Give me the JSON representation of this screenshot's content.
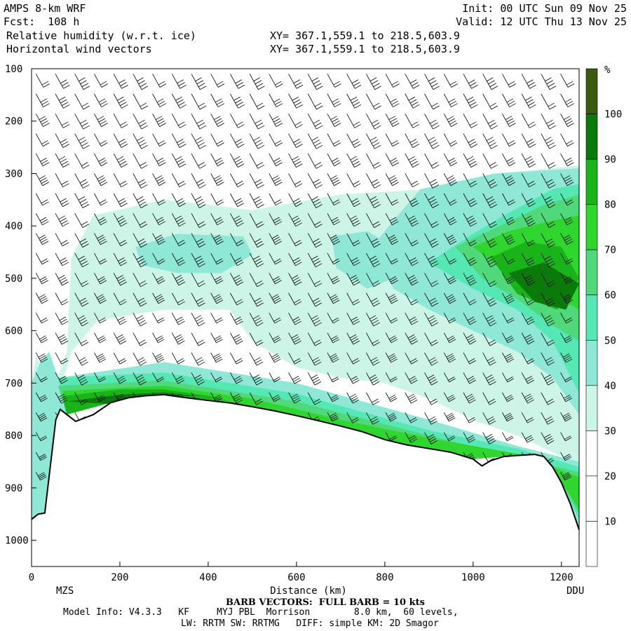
{
  "header": {
    "model": "AMPS 8-km WRF",
    "fcst": "Fcst:  108 h",
    "field1": "Relative humidity (w.r.t. ice)",
    "field2": "Horizontal wind vectors",
    "init": "Init: 00 UTC Sun 09 Nov 25",
    "valid": "Valid: 12 UTC Thu 13 Nov 25",
    "xy1": "XY= 367.1,559.1 to 218.5,603.9",
    "xy2": "XY= 367.1,559.1 to 218.5,603.9"
  },
  "footer": {
    "barb": "BARB VECTORS:  FULL BARB = 10 kts",
    "info1": "Model Info: V4.3.3   KF     MYJ PBL  Morrison        8.0 km,  60 levels,",
    "info2": "LW: RRTM SW: RRTMG   DIFF: simple KM: 2D Smagor"
  },
  "colors": {
    "c30": "#ccf5e8",
    "c40": "#8fe8d6",
    "c50": "#55e8b4",
    "c60": "#4fd97a",
    "c70": "#2ed62e",
    "c80": "#19b419",
    "c90": "#0a7a0a",
    "c100": "#3b5c0c",
    "terrain": "#000000"
  },
  "chart_data": {
    "type": "heatmap",
    "title": "Relative humidity (w.r.t. ice)",
    "xlabel": "Distance (km)",
    "ylabel": "",
    "xlim": [
      0,
      1240
    ],
    "ylim": [
      1050,
      100
    ],
    "xticks": [
      "0",
      "200",
      "400",
      "600",
      "800",
      "1000",
      "1200"
    ],
    "xtick_values": [
      0,
      200,
      400,
      600,
      800,
      1000,
      1200
    ],
    "yticks": [
      "100",
      "200",
      "300",
      "400",
      "500",
      "600",
      "700",
      "800",
      "900",
      "1000"
    ],
    "ytick_values": [
      100,
      200,
      300,
      400,
      500,
      600,
      700,
      800,
      900,
      1000
    ],
    "left_label": "MZS",
    "right_label": "DDU",
    "colorbar": {
      "unit": "%",
      "labels": [
        "10",
        "20",
        "30",
        "40",
        "50",
        "60",
        "70",
        "80",
        "90",
        "100"
      ],
      "values": [
        10,
        20,
        30,
        40,
        50,
        60,
        70,
        80,
        90,
        100
      ]
    },
    "terrain_surface_hpa": [
      [
        0,
        960
      ],
      [
        15,
        950
      ],
      [
        30,
        948
      ],
      [
        55,
        770
      ],
      [
        65,
        750
      ],
      [
        80,
        760
      ],
      [
        100,
        773
      ],
      [
        140,
        760
      ],
      [
        180,
        737
      ],
      [
        220,
        728
      ],
      [
        260,
        724
      ],
      [
        300,
        722
      ],
      [
        350,
        728
      ],
      [
        400,
        733
      ],
      [
        450,
        738
      ],
      [
        500,
        745
      ],
      [
        550,
        753
      ],
      [
        600,
        762
      ],
      [
        650,
        772
      ],
      [
        700,
        782
      ],
      [
        750,
        793
      ],
      [
        800,
        808
      ],
      [
        850,
        818
      ],
      [
        900,
        825
      ],
      [
        950,
        832
      ],
      [
        1000,
        845
      ],
      [
        1020,
        858
      ],
      [
        1040,
        848
      ],
      [
        1070,
        840
      ],
      [
        1100,
        838
      ],
      [
        1140,
        836
      ],
      [
        1160,
        840
      ],
      [
        1180,
        860
      ],
      [
        1200,
        890
      ],
      [
        1220,
        930
      ],
      [
        1240,
        980
      ]
    ],
    "humidity_regions": [
      {
        "level": 30,
        "points": [
          [
            0,
            700
          ],
          [
            60,
            690
          ],
          [
            80,
            640
          ],
          [
            90,
            460
          ],
          [
            140,
            380
          ],
          [
            300,
            350
          ],
          [
            500,
            370
          ],
          [
            700,
            340
          ],
          [
            900,
            330
          ],
          [
            1050,
            300
          ],
          [
            1240,
            285
          ],
          [
            1240,
            860
          ],
          [
            1200,
            840
          ],
          [
            1100,
            800
          ],
          [
            1000,
            770
          ],
          [
            900,
            730
          ],
          [
            800,
            700
          ],
          [
            700,
            690
          ],
          [
            600,
            670
          ],
          [
            500,
            620
          ],
          [
            450,
            560
          ],
          [
            300,
            560
          ],
          [
            150,
            580
          ],
          [
            90,
            640
          ],
          [
            70,
            700
          ],
          [
            40,
            690
          ],
          [
            10,
            650
          ],
          [
            0,
            700
          ]
        ]
      },
      {
        "level": 40,
        "points": [
          [
            235,
            440
          ],
          [
            330,
            415
          ],
          [
            480,
            420
          ],
          [
            500,
            455
          ],
          [
            430,
            490
          ],
          [
            330,
            490
          ],
          [
            250,
            475
          ]
        ]
      },
      {
        "level": 40,
        "points": [
          [
            680,
            420
          ],
          [
            760,
            410
          ],
          [
            800,
            430
          ],
          [
            820,
            500
          ],
          [
            760,
            520
          ],
          [
            690,
            480
          ]
        ]
      },
      {
        "level": 40,
        "points": [
          [
            770,
            440
          ],
          [
            880,
            330
          ],
          [
            1050,
            300
          ],
          [
            1240,
            290
          ],
          [
            1240,
            760
          ],
          [
            1180,
            690
          ],
          [
            1100,
            640
          ],
          [
            1000,
            600
          ],
          [
            900,
            560
          ],
          [
            820,
            520
          ]
        ]
      },
      {
        "level": 40,
        "points": [
          [
            0,
            700
          ],
          [
            20,
            660
          ],
          [
            40,
            640
          ],
          [
            60,
            690
          ],
          [
            80,
            760
          ],
          [
            60,
            900
          ],
          [
            20,
            960
          ],
          [
            0,
            960
          ]
        ]
      },
      {
        "level": 40,
        "points": [
          [
            60,
            690
          ],
          [
            300,
            660
          ],
          [
            600,
            700
          ],
          [
            900,
            770
          ],
          [
            1100,
            820
          ],
          [
            1240,
            850
          ],
          [
            1240,
            980
          ],
          [
            1200,
            890
          ],
          [
            1100,
            838
          ],
          [
            1000,
            845
          ],
          [
            800,
            808
          ],
          [
            500,
            745
          ],
          [
            300,
            722
          ],
          [
            180,
            737
          ],
          [
            80,
            760
          ]
        ]
      },
      {
        "level": 50,
        "points": [
          [
            900,
            470
          ],
          [
            990,
            420
          ],
          [
            1070,
            380
          ],
          [
            1180,
            330
          ],
          [
            1240,
            320
          ],
          [
            1240,
            720
          ],
          [
            1180,
            620
          ],
          [
            1100,
            560
          ],
          [
            1000,
            520
          ]
        ]
      },
      {
        "level": 50,
        "points": [
          [
            60,
            690
          ],
          [
            300,
            680
          ],
          [
            600,
            720
          ],
          [
            900,
            790
          ],
          [
            1100,
            825
          ],
          [
            1240,
            860
          ],
          [
            1240,
            960
          ],
          [
            1200,
            890
          ],
          [
            1100,
            838
          ],
          [
            1000,
            845
          ],
          [
            800,
            808
          ],
          [
            500,
            745
          ],
          [
            300,
            722
          ],
          [
            180,
            737
          ],
          [
            80,
            760
          ]
        ]
      },
      {
        "level": 60,
        "points": [
          [
            960,
            440
          ],
          [
            1060,
            400
          ],
          [
            1160,
            360
          ],
          [
            1240,
            340
          ],
          [
            1240,
            620
          ],
          [
            1180,
            590
          ],
          [
            1100,
            540
          ],
          [
            1020,
            500
          ]
        ]
      },
      {
        "level": 60,
        "points": [
          [
            60,
            705
          ],
          [
            300,
            695
          ],
          [
            600,
            735
          ],
          [
            900,
            800
          ],
          [
            1240,
            870
          ],
          [
            1240,
            950
          ],
          [
            1200,
            890
          ],
          [
            1100,
            838
          ],
          [
            1000,
            845
          ],
          [
            800,
            808
          ],
          [
            500,
            745
          ],
          [
            300,
            722
          ],
          [
            180,
            737
          ],
          [
            80,
            760
          ]
        ]
      },
      {
        "level": 70,
        "points": [
          [
            1000,
            440
          ],
          [
            1080,
            410
          ],
          [
            1180,
            390
          ],
          [
            1240,
            380
          ],
          [
            1240,
            560
          ],
          [
            1160,
            520
          ],
          [
            1060,
            480
          ]
        ]
      },
      {
        "level": 70,
        "points": [
          [
            70,
            715
          ],
          [
            300,
            705
          ],
          [
            500,
            730
          ],
          [
            700,
            770
          ],
          [
            900,
            805
          ],
          [
            1100,
            835
          ],
          [
            1240,
            880
          ],
          [
            1240,
            940
          ],
          [
            1200,
            890
          ],
          [
            1100,
            838
          ],
          [
            1000,
            845
          ],
          [
            800,
            808
          ],
          [
            500,
            745
          ],
          [
            300,
            722
          ],
          [
            180,
            737
          ],
          [
            80,
            760
          ]
        ]
      },
      {
        "level": 80,
        "points": [
          [
            1040,
            460
          ],
          [
            1120,
            430
          ],
          [
            1200,
            440
          ],
          [
            1240,
            500
          ],
          [
            1190,
            560
          ],
          [
            1100,
            530
          ]
        ]
      },
      {
        "level": 80,
        "points": [
          [
            70,
            725
          ],
          [
            200,
            712
          ],
          [
            300,
            712
          ],
          [
            400,
            724
          ],
          [
            450,
            735
          ],
          [
            300,
            722
          ],
          [
            180,
            737
          ],
          [
            80,
            760
          ]
        ]
      },
      {
        "level": 90,
        "points": [
          [
            1080,
            490
          ],
          [
            1160,
            470
          ],
          [
            1240,
            510
          ],
          [
            1210,
            560
          ],
          [
            1140,
            545
          ]
        ]
      },
      {
        "level": 90,
        "points": [
          [
            80,
            735
          ],
          [
            200,
            722
          ],
          [
            300,
            718
          ],
          [
            380,
            725
          ],
          [
            300,
            724
          ],
          [
            180,
            740
          ]
        ]
      }
    ]
  }
}
